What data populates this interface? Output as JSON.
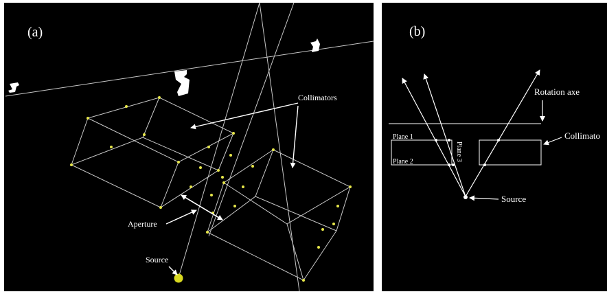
{
  "panel_a": {
    "label": "(a)",
    "collimators_label": "Collimators",
    "aperture_label": "Aperture",
    "source_label": "Source"
  },
  "panel_b": {
    "label": "(b)",
    "rotation_axe_label": "Rotation axe",
    "collimator_label": "Collimato",
    "plane1_label": "Plane 1",
    "plane2_label": "Plane 2",
    "plane3_label": "Plane 3",
    "source_label": "Source"
  },
  "colors": {
    "background": "#000000",
    "lines": "#c8c8c8",
    "arrows": "#ffffff",
    "dots": "#e6e64a",
    "source_dot": "#d8d820",
    "divider": "#ffffff"
  },
  "icons": [
    "detector-silhouette-icon",
    "source-sphere-icon"
  ]
}
